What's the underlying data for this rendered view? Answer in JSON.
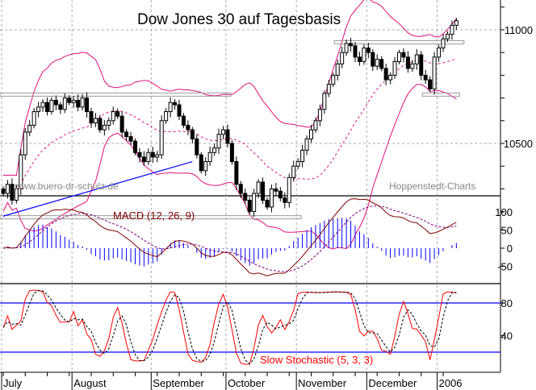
{
  "chart_data": {
    "type": "candlestick",
    "title": "Dow Jones 30 auf Tagesbasis",
    "watermark_left": "www.buero-dr-schulz.de",
    "watermark_right": "Hoppenstedt-Charts",
    "price_ticks": [
      11000,
      10500
    ],
    "price_range": [
      10130,
      11130
    ],
    "months": [
      "July",
      "August",
      "September",
      "October",
      "November",
      "December",
      "2006"
    ],
    "month_start_index": [
      0,
      16,
      34,
      51,
      67,
      83,
      99
    ],
    "closes": [
      10280,
      10320,
      10250,
      10300,
      10450,
      10550,
      10580,
      10640,
      10660,
      10680,
      10640,
      10690,
      10670,
      10650,
      10700,
      10680,
      10690,
      10660,
      10700,
      10640,
      10590,
      10610,
      10560,
      10580,
      10600,
      10640,
      10620,
      10550,
      10530,
      10510,
      10460,
      10440,
      10420,
      10460,
      10440,
      10450,
      10600,
      10640,
      10680,
      10670,
      10620,
      10580,
      10560,
      10520,
      10450,
      10380,
      10420,
      10460,
      10480,
      10540,
      10560,
      10500,
      10420,
      10320,
      10280,
      10250,
      10200,
      10280,
      10330,
      10250,
      10220,
      10300,
      10290,
      10260,
      10240,
      10350,
      10400,
      10420,
      10470,
      10520,
      10560,
      10600,
      10650,
      10720,
      10760,
      10800,
      10850,
      10900,
      10940,
      10930,
      10880,
      10860,
      10920,
      10900,
      10840,
      10870,
      10830,
      10780,
      10800,
      10860,
      10900,
      10880,
      10830,
      10850,
      10890,
      10800,
      10780,
      10740,
      10880,
      10920,
      10960,
      10980,
      11020,
      11040
    ],
    "support_resistance": [
      {
        "from": 0,
        "to": 51,
        "price": 10715
      },
      {
        "from": 0,
        "to": 67,
        "price": 10175
      },
      {
        "from": 76,
        "to": 104,
        "price": 10945
      },
      {
        "from": 96,
        "to": 103,
        "price": 10715
      }
    ],
    "trendline": {
      "from": [
        0,
        10180
      ],
      "to": [
        43,
        10420
      ]
    },
    "macd": {
      "label": "MACD (12, 26, 9)",
      "ticks": [
        100,
        50,
        0,
        -50
      ],
      "range": [
        -90,
        140
      ]
    },
    "stochastic": {
      "label": "Slow Stochastic (5, 3, 3)",
      "ticks": [
        80,
        40
      ],
      "levels": [
        80,
        20
      ],
      "range": [
        0,
        105
      ]
    }
  }
}
